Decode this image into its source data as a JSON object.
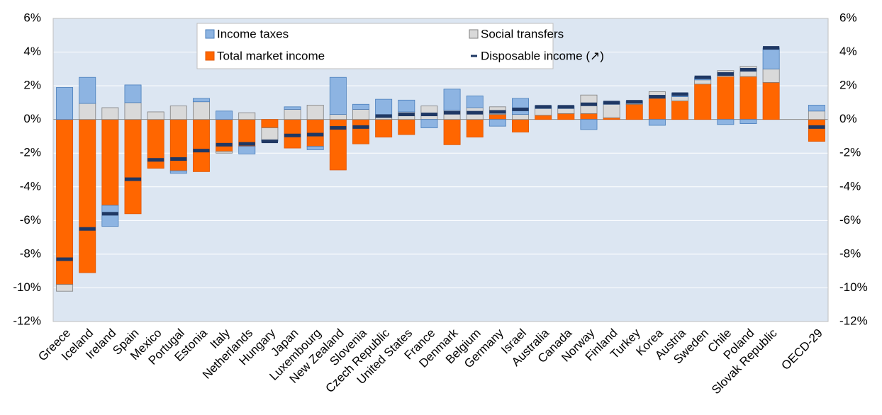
{
  "chart_data": {
    "type": "bar",
    "categories": [
      "Greece",
      "Iceland",
      "Ireland",
      "Spain",
      "Mexico",
      "Portugal",
      "Estonia",
      "Italy",
      "Netherlands",
      "Hungary",
      "Japan",
      "Luxembourg",
      "New Zealand",
      "Slovenia",
      "Czech Republic",
      "United States",
      "France",
      "Denmark",
      "Belgium",
      "Germany",
      "Israel",
      "Australia",
      "Canada",
      "Norway",
      "Finland",
      "Turkey",
      "Korea",
      "Austria",
      "Sweden",
      "Chile",
      "Poland",
      "Slovak Republic",
      null,
      "OECD-29"
    ],
    "series": [
      {
        "name": "Income taxes",
        "color": "#8db4e2",
        "mark": "bar",
        "values": [
          1.9,
          1.55,
          -1.25,
          1.05,
          0,
          -0.15,
          0.2,
          0.5,
          -0.45,
          -0.05,
          0.15,
          -0.2,
          2.2,
          0.3,
          1.05,
          0.7,
          -0.5,
          1.25,
          0.7,
          -0.4,
          0.95,
          0.15,
          0.15,
          -0.6,
          0.15,
          0.15,
          -0.35,
          0.2,
          0.15,
          -0.3,
          -0.25,
          1.25,
          null,
          0.35
        ]
      },
      {
        "name": "Social transfers",
        "color": "#d9d9d9",
        "mark": "bar",
        "values": [
          -0.4,
          0.95,
          0.7,
          1.0,
          0.45,
          0.8,
          1.05,
          -0.1,
          0.4,
          -0.75,
          0.6,
          0.85,
          0.3,
          0.6,
          0.15,
          0.45,
          0.8,
          0.55,
          0.7,
          0.45,
          0.3,
          0.4,
          0.3,
          1.1,
          0.8,
          0.05,
          0.4,
          0.25,
          0.25,
          0.35,
          0.6,
          0.8,
          null,
          0.5
        ]
      },
      {
        "name": "Total market income",
        "color": "#ff6600",
        "mark": "bar",
        "values": [
          -9.8,
          -9.1,
          -5.1,
          -5.6,
          -2.9,
          -3.05,
          -3.1,
          -1.9,
          -1.6,
          -0.5,
          -1.7,
          -1.6,
          -3.0,
          -1.45,
          -1.05,
          -0.9,
          0,
          -1.5,
          -1.05,
          0.3,
          -0.75,
          0.25,
          0.35,
          0.35,
          0.1,
          0.9,
          1.25,
          1.1,
          2.1,
          2.55,
          2.55,
          2.2,
          null,
          -1.3
        ]
      },
      {
        "name": "Disposable income (↗)",
        "color": "#1f3864",
        "mark": "dash",
        "values": [
          -8.3,
          -6.5,
          -5.6,
          -3.55,
          -2.4,
          -2.35,
          -1.85,
          -1.5,
          -1.45,
          -1.3,
          -0.95,
          -0.9,
          -0.5,
          -0.45,
          0.2,
          0.3,
          0.3,
          0.4,
          0.4,
          0.45,
          0.6,
          0.75,
          0.75,
          0.9,
          1.0,
          1.05,
          1.35,
          1.5,
          2.5,
          2.7,
          2.95,
          4.25,
          null,
          -0.45
        ]
      }
    ],
    "ylim": [
      -12,
      6
    ],
    "yticks": [
      {
        "value": -12,
        "label": "-12%"
      },
      {
        "value": -10,
        "label": "-10%"
      },
      {
        "value": -8,
        "label": "-8%"
      },
      {
        "value": -6,
        "label": "-6%"
      },
      {
        "value": -4,
        "label": "-4%"
      },
      {
        "value": -2,
        "label": "-2%"
      },
      {
        "value": 0,
        "label": "0%"
      },
      {
        "value": 2,
        "label": "2%"
      },
      {
        "value": 4,
        "label": "4%"
      },
      {
        "value": 6,
        "label": "6%"
      }
    ],
    "y2lim": [
      -12,
      6
    ],
    "y2ticks": [
      {
        "value": -12,
        "label": "-12%"
      },
      {
        "value": -10,
        "label": "-10%"
      },
      {
        "value": -8,
        "label": "-8%"
      },
      {
        "value": -6,
        "label": "-6%"
      },
      {
        "value": -4,
        "label": "-4%"
      },
      {
        "value": -2,
        "label": "-2%"
      },
      {
        "value": 0,
        "label": "0%"
      },
      {
        "value": 2,
        "label": "2%"
      },
      {
        "value": 4,
        "label": "4%"
      },
      {
        "value": 6,
        "label": "6%"
      }
    ],
    "grid": true
  }
}
